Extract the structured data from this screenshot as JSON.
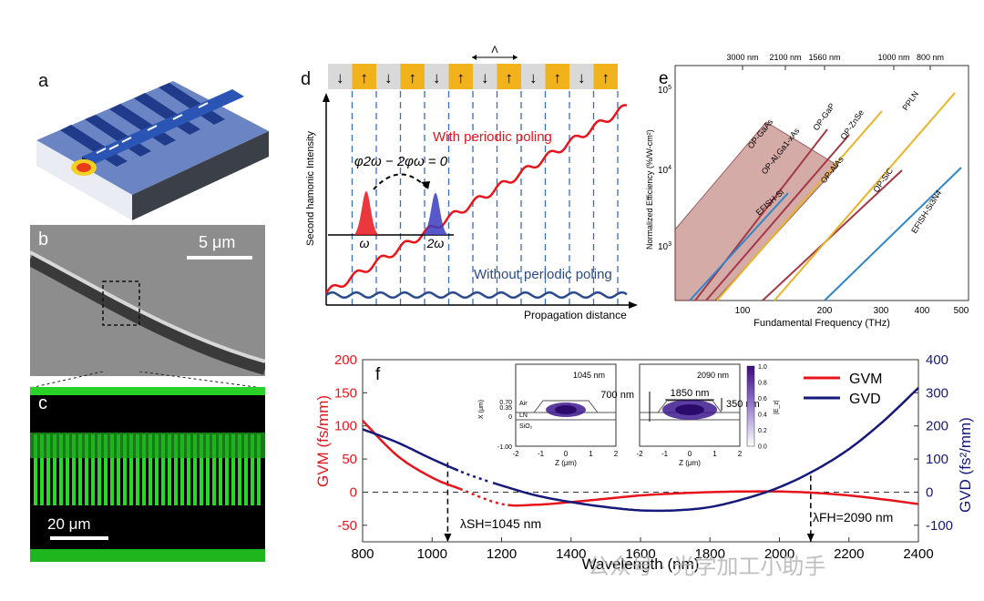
{
  "figure": {
    "panel_labels": {
      "a": "a",
      "b": "b",
      "c": "c",
      "d": "d",
      "e": "e",
      "f": "f"
    },
    "scale_bar_b": "5 μm",
    "scale_bar_c": "20 μm",
    "colors": {
      "red": "#e8141c",
      "navy": "#16197a",
      "gold": "#e7b42a",
      "teal": "#2f86c8",
      "maroon": "#a33946",
      "green": "#2ad82a"
    }
  },
  "panel_d": {
    "ylabel": "Second hamonic Intensity",
    "xlabel": "Propagation distance",
    "period_label": "Λ",
    "with_label": "With periodic poling",
    "without_label": "Without periodic poling",
    "phase_eq": "φ2ω − 2φω = 0",
    "omega": "ω",
    "two_omega": "2ω",
    "arrows": [
      "↓",
      "↑",
      "↓",
      "↑",
      "↓",
      "↑",
      "↓",
      "↑",
      "↓",
      "↑",
      "↓",
      "↑"
    ]
  },
  "panel_e": {
    "top_ticks": [
      "3000 nm",
      "2100 nm",
      "1560 nm",
      "1000 nm",
      "800 nm"
    ],
    "y_ticks": [
      "10^5",
      "10^4",
      "10^3"
    ],
    "x_ticks": [
      "100",
      "200",
      "300",
      "400",
      "500"
    ],
    "ylabel": "Normalized Efficiency (%/W-cm²)",
    "xlabel": "Fundamental Frequency (THz)",
    "lines": [
      "OP-GaAs",
      "OP-Al,Ga1-xAs",
      "OP-GaP",
      "OP-ZnSe",
      "EFISH-Si",
      "OP-AlAs",
      "PPLN",
      "OP-SiC",
      "EFISH-Si3N4"
    ]
  },
  "chart_data": {
    "type": "line",
    "title": "",
    "xlabel": "Wavelength (nm)",
    "ylabel": "GVM (fs/mm)",
    "y2label": "GVD (fs²/mm)",
    "xlim": [
      800,
      2400
    ],
    "ylim": [
      -75,
      200
    ],
    "y2lim": [
      -150,
      400
    ],
    "xticks": [
      "800",
      "1000",
      "1200",
      "1400",
      "1600",
      "1800",
      "2000",
      "2200",
      "2400"
    ],
    "yticks": [
      "200",
      "150",
      "100",
      "50",
      "0",
      "-50"
    ],
    "y2ticks": [
      "400",
      "300",
      "200",
      "100",
      "0",
      "-100"
    ],
    "series": [
      {
        "name": "GVM",
        "axis": "left",
        "x": [
          800,
          900,
          1000,
          1080,
          1200,
          1300,
          1400,
          1500,
          1600,
          1700,
          1800,
          1900,
          2000,
          2100,
          2200,
          2300,
          2400
        ],
        "y": [
          108,
          55,
          22,
          5,
          -18,
          -19,
          -15,
          -10,
          -5,
          -2,
          0,
          1,
          1,
          -1,
          -5,
          -11,
          -18
        ]
      },
      {
        "name": "GVD",
        "axis": "right",
        "x": [
          800,
          900,
          1000,
          1100,
          1200,
          1300,
          1400,
          1500,
          1600,
          1700,
          1800,
          1900,
          2000,
          2100,
          2200,
          2300,
          2400
        ],
        "y": [
          190,
          150,
          100,
          55,
          20,
          -10,
          -30,
          -45,
          -55,
          -55,
          -45,
          -20,
          15,
          65,
          130,
          215,
          315
        ]
      }
    ],
    "legend": [
      "GVM",
      "GVD"
    ],
    "annotations": {
      "sh": "λSH=1045 nm",
      "fh": "λFH=2090 nm"
    },
    "inset": {
      "left_title": "1045 nm",
      "right_title": "2090 nm",
      "dims": [
        "700 nm",
        "1850 nm",
        "350 nm"
      ],
      "ylab": "X (μm)",
      "xlab": "Z (μm)",
      "layers": [
        "Air",
        "LN",
        "SiO₂"
      ],
      "yticks": [
        "0.70",
        "0.35",
        "0",
        "-1.00"
      ],
      "xticks": [
        "-2",
        "-1",
        "0",
        "1",
        "2"
      ],
      "cbar_ticks": [
        "1.0",
        "0.8",
        "0.6",
        "0.4",
        "0.2",
        "0.0"
      ],
      "cbar_label": "|E_z|"
    }
  },
  "watermark": "公众号 · 光学加工小助手"
}
